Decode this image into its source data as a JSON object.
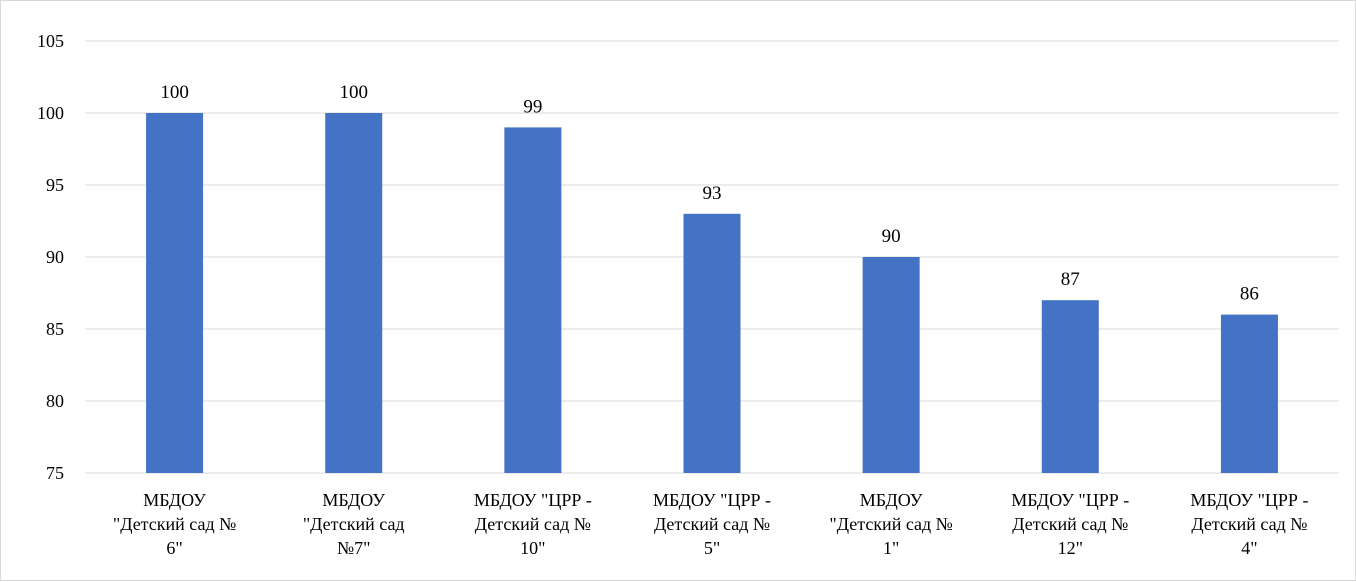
{
  "chart_data": {
    "type": "bar",
    "categories": [
      [
        "МБДОУ",
        "\"Детский сад №",
        "6\""
      ],
      [
        "МБДОУ",
        "\"Детский сад",
        "№7\""
      ],
      [
        "МБДОУ \"ЦРР -",
        "Детский сад №",
        "10\""
      ],
      [
        "МБДОУ \"ЦРР -",
        "Детский сад №",
        "5\""
      ],
      [
        "МБДОУ",
        "\"Детский сад №",
        "1\""
      ],
      [
        "МБДОУ \"ЦРР -",
        "Детский сад №",
        "12\""
      ],
      [
        "МБДОУ \"ЦРР -",
        "Детский сад №",
        "4\""
      ]
    ],
    "values": [
      100,
      100,
      99,
      93,
      90,
      87,
      86
    ],
    "data_labels": [
      "100",
      "100",
      "99",
      "93",
      "90",
      "87",
      "86"
    ],
    "ylim": [
      75,
      105
    ],
    "yticks": [
      75,
      80,
      85,
      90,
      95,
      100,
      105
    ],
    "ytick_labels": [
      "75",
      "80",
      "85",
      "90",
      "95",
      "100",
      "105"
    ],
    "grid": true,
    "legend": "none",
    "bar_color": "#4472c4",
    "grid_color": "#d9d9d9"
  }
}
